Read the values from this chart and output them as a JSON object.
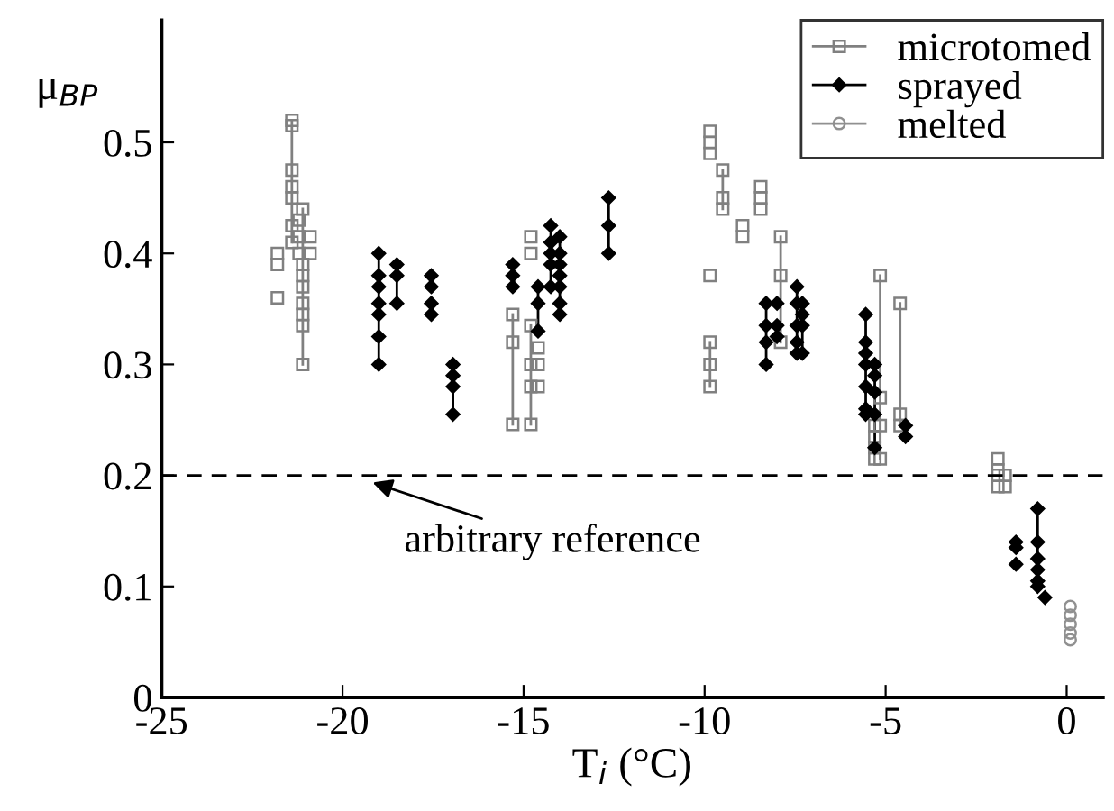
{
  "chart_data": {
    "type": "scatter",
    "xlabel": "T$_{i}$ (°C)",
    "ylabel": "μ$_{BP}$",
    "xlim": [
      -25,
      1
    ],
    "xticks": [
      -25,
      -20,
      -15,
      -10,
      -5,
      0
    ],
    "ylim": [
      0,
      0.61
    ],
    "yticks": [
      0,
      0.1,
      0.2,
      0.3,
      0.4,
      0.5
    ],
    "grid": false,
    "legend": "top right",
    "series": [
      {
        "name": "microtomed",
        "color": "#808080",
        "marker": "square",
        "x": [
          -21.8,
          -21.8,
          -21.8,
          -21.4,
          -21.4,
          -21.4,
          -21.4,
          -21.4,
          -21.4,
          -21.4,
          -21.2,
          -21.2,
          -21.2,
          -21.1,
          -21.1,
          -21.1,
          -21.1,
          -21.1,
          -21.1,
          -21.1,
          -21.1,
          -20.9,
          -20.9,
          -15.3,
          -15.3,
          -15.3,
          -14.8,
          -14.8,
          -14.8,
          -14.8,
          -14.8,
          -14.8,
          -14.6,
          -14.6,
          -14.6,
          -9.85,
          -9.85,
          -9.85,
          -9.85,
          -9.85,
          -9.85,
          -9.85,
          -9.5,
          -9.5,
          -9.5,
          -8.95,
          -8.95,
          -8.45,
          -8.45,
          -8.45,
          -7.9,
          -7.9,
          -7.9,
          -5.3,
          -5.3,
          -5.3,
          -5.3,
          -5.15,
          -5.15,
          -5.15,
          -5.15,
          -4.6,
          -4.6,
          -4.6,
          -1.9,
          -1.9,
          -1.9,
          -1.9,
          -1.7,
          -1.7
        ],
        "values": [
          0.4,
          0.39,
          0.36,
          0.52,
          0.515,
          0.475,
          0.46,
          0.45,
          0.425,
          0.41,
          0.43,
          0.415,
          0.4,
          0.44,
          0.39,
          0.38,
          0.37,
          0.355,
          0.345,
          0.335,
          0.3,
          0.415,
          0.4,
          0.345,
          0.32,
          0.246,
          0.415,
          0.4,
          0.335,
          0.3,
          0.28,
          0.246,
          0.315,
          0.3,
          0.28,
          0.51,
          0.5,
          0.49,
          0.38,
          0.32,
          0.3,
          0.28,
          0.475,
          0.45,
          0.44,
          0.425,
          0.415,
          0.46,
          0.45,
          0.44,
          0.415,
          0.38,
          0.32,
          0.245,
          0.235,
          0.225,
          0.215,
          0.38,
          0.27,
          0.245,
          0.215,
          0.355,
          0.255,
          0.245,
          0.215,
          0.205,
          0.2,
          0.19,
          0.2,
          0.19
        ]
      },
      {
        "name": "sprayed",
        "color": "#000000",
        "marker": "diamond",
        "x": [
          -19.0,
          -19.0,
          -19.0,
          -19.0,
          -19.0,
          -19.0,
          -19.0,
          -18.5,
          -18.5,
          -18.5,
          -17.55,
          -17.55,
          -17.55,
          -17.55,
          -16.95,
          -16.95,
          -16.95,
          -16.95,
          -15.3,
          -15.3,
          -15.3,
          -14.6,
          -14.6,
          -14.6,
          -14.25,
          -14.25,
          -14.25,
          -14.25,
          -14.25,
          -14.0,
          -14.0,
          -14.0,
          -14.0,
          -14.0,
          -14.0,
          -14.0,
          -12.65,
          -12.65,
          -12.65,
          -8.3,
          -8.3,
          -8.3,
          -8.3,
          -8.0,
          -8.0,
          -8.0,
          -7.45,
          -7.45,
          -7.45,
          -7.45,
          -7.45,
          -7.3,
          -7.3,
          -7.3,
          -7.3,
          -5.55,
          -5.55,
          -5.55,
          -5.55,
          -5.55,
          -5.55,
          -5.55,
          -5.3,
          -5.3,
          -5.3,
          -5.3,
          -5.3,
          -4.45,
          -4.45,
          -1.4,
          -1.4,
          -1.4,
          -0.8,
          -0.8,
          -0.8,
          -0.8,
          -0.8,
          -0.8,
          -0.6
        ],
        "values": [
          0.4,
          0.38,
          0.37,
          0.355,
          0.345,
          0.325,
          0.3,
          0.39,
          0.38,
          0.355,
          0.38,
          0.37,
          0.355,
          0.345,
          0.3,
          0.29,
          0.28,
          0.255,
          0.39,
          0.38,
          0.37,
          0.37,
          0.355,
          0.33,
          0.425,
          0.41,
          0.4,
          0.39,
          0.37,
          0.415,
          0.4,
          0.39,
          0.38,
          0.37,
          0.355,
          0.345,
          0.45,
          0.425,
          0.4,
          0.355,
          0.335,
          0.32,
          0.3,
          0.355,
          0.335,
          0.325,
          0.37,
          0.355,
          0.335,
          0.32,
          0.31,
          0.355,
          0.345,
          0.335,
          0.31,
          0.345,
          0.32,
          0.31,
          0.3,
          0.28,
          0.26,
          0.255,
          0.3,
          0.29,
          0.275,
          0.255,
          0.225,
          0.245,
          0.235,
          0.14,
          0.135,
          0.12,
          0.17,
          0.14,
          0.125,
          0.115,
          0.105,
          0.1,
          0.09
        ]
      },
      {
        "name": "melted",
        "color": "#909090",
        "marker": "circle",
        "x": [
          0.1,
          0.1,
          0.1,
          0.1,
          0.1
        ],
        "values": [
          0.082,
          0.074,
          0.066,
          0.058,
          0.052
        ]
      },
      {
        "type": "line",
        "color": "#808080",
        "marker": "none",
        "x": [
          -21.4,
          -21.4
        ],
        "values": [
          0.52,
          0.41
        ]
      },
      {
        "type": "line",
        "color": "#808080",
        "marker": "none",
        "x": [
          -21.1,
          -21.1
        ],
        "values": [
          0.44,
          0.3
        ]
      },
      {
        "type": "line",
        "color": "#808080",
        "marker": "none",
        "x": [
          -15.3,
          -15.3
        ],
        "values": [
          0.345,
          0.246
        ]
      },
      {
        "type": "line",
        "color": "#808080",
        "marker": "none",
        "x": [
          -14.8,
          -14.8
        ],
        "values": [
          0.335,
          0.246
        ]
      },
      {
        "type": "line",
        "color": "#808080",
        "marker": "none",
        "x": [
          -9.85,
          -9.85
        ],
        "values": [
          0.32,
          0.28
        ]
      },
      {
        "type": "line",
        "color": "#808080",
        "marker": "none",
        "x": [
          -9.5,
          -9.5
        ],
        "values": [
          0.475,
          0.44
        ]
      },
      {
        "type": "line",
        "color": "#808080",
        "marker": "none",
        "x": [
          -7.9,
          -7.9
        ],
        "values": [
          0.415,
          0.32
        ]
      },
      {
        "type": "line",
        "color": "#808080",
        "marker": "none",
        "x": [
          -5.15,
          -5.15
        ],
        "values": [
          0.38,
          0.215
        ]
      },
      {
        "type": "line",
        "color": "#808080",
        "marker": "none",
        "x": [
          -4.6,
          -4.6
        ],
        "values": [
          0.355,
          0.245
        ]
      },
      {
        "type": "line",
        "color": "#000000",
        "marker": "none",
        "x": [
          -19.0,
          -19.0
        ],
        "values": [
          0.4,
          0.3
        ]
      },
      {
        "type": "line",
        "color": "#000000",
        "marker": "none",
        "x": [
          -18.5,
          -18.5
        ],
        "values": [
          0.39,
          0.355
        ]
      },
      {
        "type": "line",
        "color": "#000000",
        "marker": "none",
        "x": [
          -16.95,
          -16.95
        ],
        "values": [
          0.3,
          0.255
        ]
      },
      {
        "type": "line",
        "color": "#000000",
        "marker": "none",
        "x": [
          -14.6,
          -14.6
        ],
        "values": [
          0.37,
          0.33
        ]
      },
      {
        "type": "line",
        "color": "#000000",
        "marker": "none",
        "x": [
          -14.25,
          -14.25
        ],
        "values": [
          0.425,
          0.37
        ]
      },
      {
        "type": "line",
        "color": "#000000",
        "marker": "none",
        "x": [
          -14.0,
          -14.0
        ],
        "values": [
          0.415,
          0.345
        ]
      },
      {
        "type": "line",
        "color": "#000000",
        "marker": "none",
        "x": [
          -12.65,
          -12.65
        ],
        "values": [
          0.45,
          0.4
        ]
      },
      {
        "type": "line",
        "color": "#000000",
        "marker": "none",
        "x": [
          -8.3,
          -8.3
        ],
        "values": [
          0.355,
          0.3
        ]
      },
      {
        "type": "line",
        "color": "#000000",
        "marker": "none",
        "x": [
          -7.45,
          -7.45
        ],
        "values": [
          0.37,
          0.31
        ]
      },
      {
        "type": "line",
        "color": "#000000",
        "marker": "none",
        "x": [
          -7.3,
          -7.3
        ],
        "values": [
          0.355,
          0.31
        ]
      },
      {
        "type": "line",
        "color": "#000000",
        "marker": "none",
        "x": [
          -5.55,
          -5.55
        ],
        "values": [
          0.345,
          0.255
        ]
      },
      {
        "type": "line",
        "color": "#000000",
        "marker": "none",
        "x": [
          -5.3,
          -5.3
        ],
        "values": [
          0.3,
          0.225
        ]
      },
      {
        "type": "line",
        "color": "#000000",
        "marker": "none",
        "x": [
          -0.8,
          -0.8
        ],
        "values": [
          0.17,
          0.1
        ]
      }
    ],
    "ref_lines": [
      {
        "axis": "y",
        "value": 0.2,
        "color": "#000000",
        "line_style": "dashed"
      }
    ],
    "annotations": [
      {
        "text": "arbitrary reference",
        "x": -19.3,
        "y": 0.195
      }
    ]
  }
}
